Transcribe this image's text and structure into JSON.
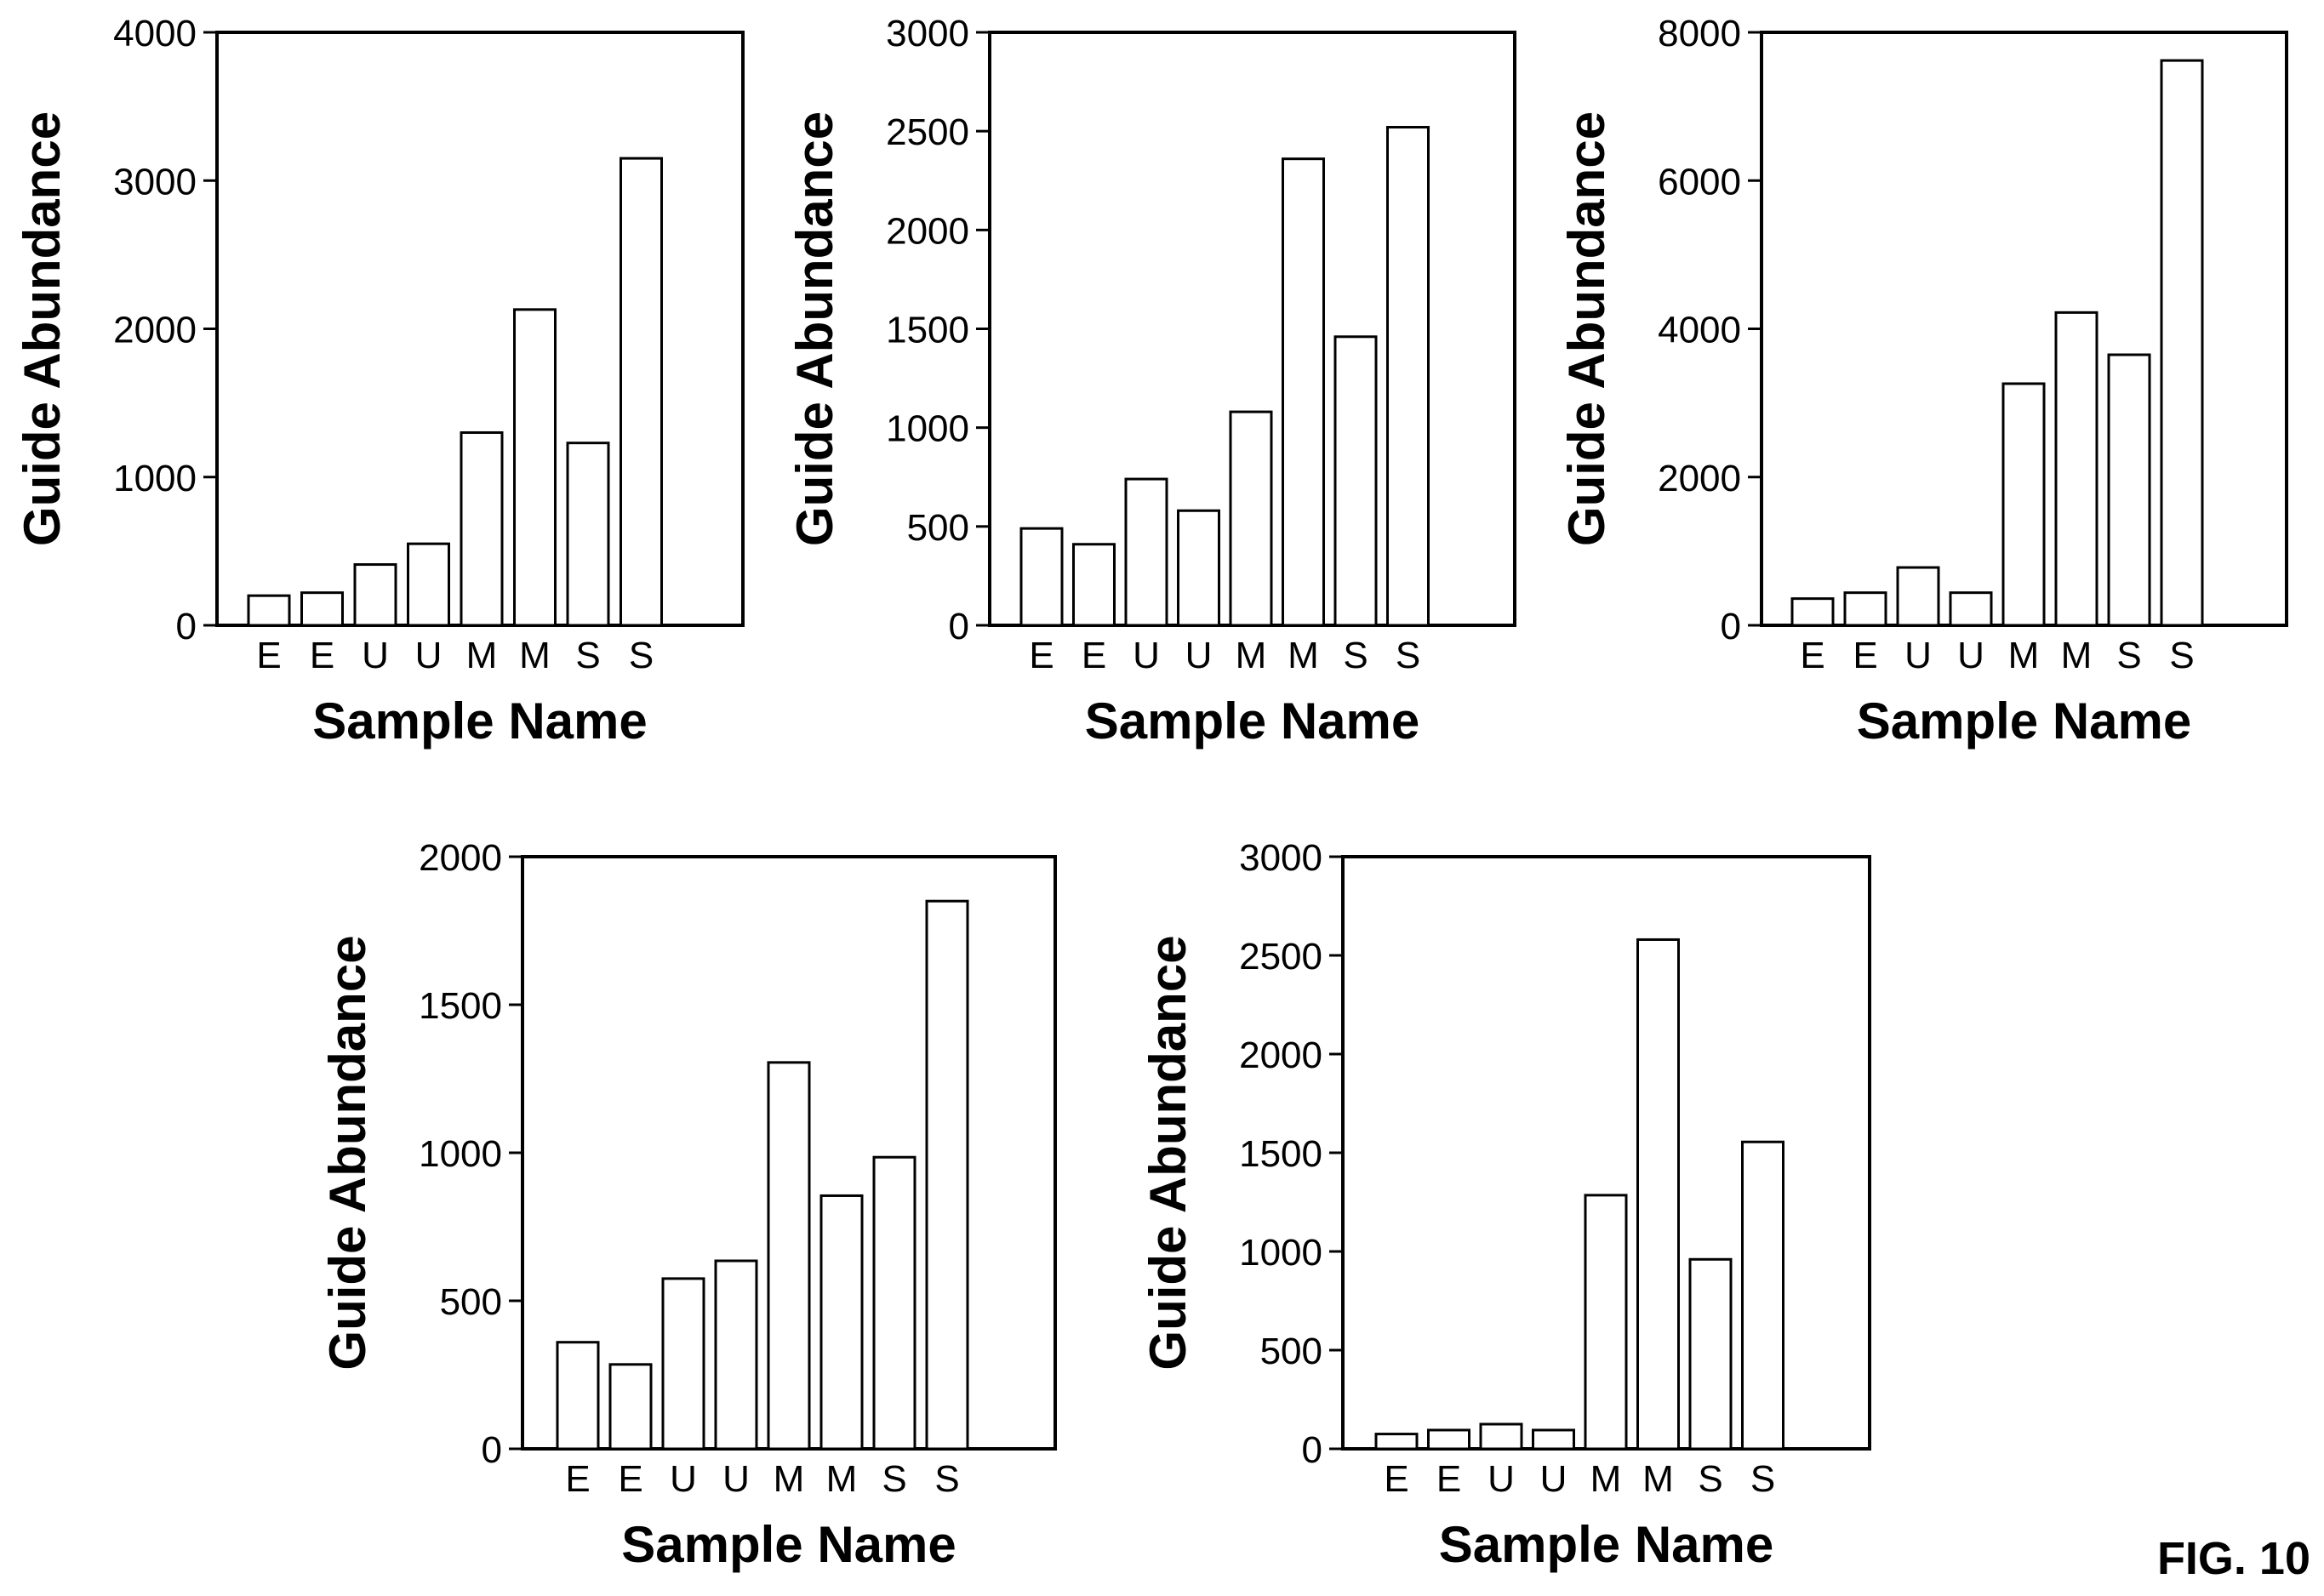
{
  "figure": {
    "label": "FIG. 10"
  },
  "chart_data": [
    {
      "type": "bar",
      "xlabel": "Sample Name",
      "ylabel": "Guide Abundance",
      "categories": [
        "E",
        "E",
        "U",
        "U",
        "M",
        "M",
        "S",
        "S"
      ],
      "values": [
        200,
        220,
        410,
        550,
        1300,
        2130,
        1230,
        3150
      ],
      "ylim": [
        0,
        4000
      ],
      "yticks": [
        0,
        1000,
        2000,
        3000,
        4000
      ],
      "grid": false
    },
    {
      "type": "bar",
      "xlabel": "Sample Name",
      "ylabel": "Guide Abundance",
      "categories": [
        "E",
        "E",
        "U",
        "U",
        "M",
        "M",
        "S",
        "S"
      ],
      "values": [
        490,
        410,
        740,
        580,
        1080,
        2360,
        1460,
        2520
      ],
      "ylim": [
        0,
        3000
      ],
      "yticks": [
        0,
        500,
        1000,
        1500,
        2000,
        2500,
        3000
      ],
      "grid": false
    },
    {
      "type": "bar",
      "xlabel": "Sample Name",
      "ylabel": "Guide Abundance",
      "categories": [
        "E",
        "E",
        "U",
        "U",
        "M",
        "M",
        "S",
        "S"
      ],
      "values": [
        360,
        440,
        780,
        440,
        3260,
        4220,
        3650,
        7620
      ],
      "ylim": [
        0,
        8000
      ],
      "yticks": [
        0,
        2000,
        4000,
        6000,
        8000
      ],
      "grid": false
    },
    {
      "type": "bar",
      "xlabel": "Sample Name",
      "ylabel": "Guide Abundance",
      "categories": [
        "E",
        "E",
        "U",
        "U",
        "M",
        "M",
        "S",
        "S"
      ],
      "values": [
        360,
        285,
        575,
        635,
        1305,
        855,
        985,
        1850
      ],
      "ylim": [
        0,
        2000
      ],
      "yticks": [
        0,
        500,
        1000,
        1500,
        2000
      ],
      "grid": false
    },
    {
      "type": "bar",
      "xlabel": "Sample Name",
      "ylabel": "Guide Abundance",
      "categories": [
        "E",
        "E",
        "U",
        "U",
        "M",
        "M",
        "S",
        "S"
      ],
      "values": [
        75,
        95,
        125,
        95,
        1285,
        2580,
        960,
        1555
      ],
      "ylim": [
        0,
        3000
      ],
      "yticks": [
        0,
        500,
        1000,
        1500,
        2000,
        2500,
        3000
      ],
      "grid": false
    }
  ]
}
